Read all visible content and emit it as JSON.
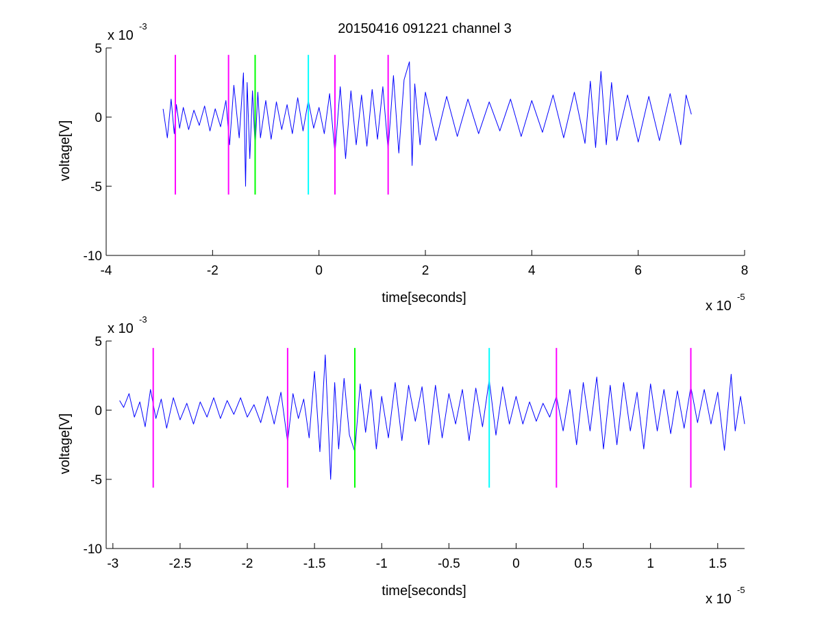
{
  "figure": {
    "title": "20150416 091221 channel 3",
    "background": "#ffffff",
    "signal_color": "#0000ff",
    "marker_colors": {
      "magenta": "#ff00ff",
      "green": "#00ff00",
      "cyan": "#00ffff"
    }
  },
  "chart_data": [
    {
      "type": "line",
      "title": "20150416 091221 channel 3",
      "xlabel": "time[seconds]",
      "ylabel": "voltage[V]",
      "x_multiplier": {
        "base": "x 10",
        "exponent": "-5"
      },
      "y_multiplier": {
        "base": "x 10",
        "exponent": "-3"
      },
      "xlim": [
        -4,
        8
      ],
      "ylim": [
        -10,
        5
      ],
      "x_ticks": [
        -4,
        -2,
        0,
        2,
        4,
        6,
        8
      ],
      "x_tick_labels": [
        "-4",
        "-2",
        "0",
        "2",
        "4",
        "6",
        "8"
      ],
      "y_ticks": [
        -10,
        -5,
        0,
        5
      ],
      "y_tick_labels": [
        "-10",
        "-5",
        "0",
        "5"
      ],
      "grid": false,
      "series": [
        {
          "color": "#0000ff",
          "x": [
            -2.93,
            -2.85,
            -2.78,
            -2.72,
            -2.68,
            -2.62,
            -2.55,
            -2.45,
            -2.35,
            -2.25,
            -2.15,
            -2.05,
            -1.95,
            -1.85,
            -1.75,
            -1.68,
            -1.6,
            -1.5,
            -1.42,
            -1.38,
            -1.35,
            -1.3,
            -1.25,
            -1.2,
            -1.15,
            -1.1,
            -1.0,
            -0.9,
            -0.8,
            -0.7,
            -0.6,
            -0.5,
            -0.4,
            -0.3,
            -0.2,
            -0.1,
            0.0,
            0.1,
            0.2,
            0.3,
            0.4,
            0.5,
            0.6,
            0.7,
            0.8,
            0.9,
            1.0,
            1.1,
            1.2,
            1.3,
            1.4,
            1.5,
            1.6,
            1.7,
            1.75,
            1.8,
            1.9,
            2.0,
            2.2,
            2.4,
            2.6,
            2.8,
            3.0,
            3.2,
            3.4,
            3.6,
            3.8,
            4.0,
            4.2,
            4.4,
            4.6,
            4.8,
            5.0,
            5.1,
            5.2,
            5.3,
            5.4,
            5.5,
            5.6,
            5.8,
            6.0,
            6.2,
            6.4,
            6.6,
            6.8,
            6.9,
            7.0
          ],
          "y": [
            0.6,
            -1.5,
            1.3,
            -1.2,
            0.9,
            -0.8,
            0.7,
            -0.9,
            0.5,
            -0.6,
            0.8,
            -1.0,
            0.6,
            -0.7,
            1.2,
            -2.0,
            2.3,
            -1.5,
            3.2,
            -5.0,
            2.5,
            -3.0,
            1.9,
            -2.2,
            1.8,
            -1.5,
            1.2,
            -1.6,
            1.1,
            -0.9,
            0.9,
            -1.2,
            1.4,
            -1.0,
            1.2,
            -0.8,
            0.7,
            -1.2,
            1.7,
            -2.6,
            2.2,
            -3.0,
            1.9,
            -2.0,
            1.6,
            -2.1,
            2.0,
            -1.6,
            2.2,
            -2.4,
            3.0,
            -2.6,
            2.7,
            4.0,
            -3.5,
            2.4,
            -2.0,
            1.8,
            -1.7,
            1.5,
            -1.4,
            1.3,
            -1.2,
            1.1,
            -1.0,
            1.3,
            -1.4,
            1.2,
            -1.1,
            1.6,
            -1.5,
            1.8,
            -1.9,
            2.6,
            -2.2,
            3.3,
            -2.0,
            2.5,
            -1.7,
            1.6,
            -1.8,
            1.5,
            -1.7,
            1.7,
            -2.0,
            1.6,
            0.2
          ]
        }
      ],
      "markers": [
        {
          "x": -2.7,
          "y_range": [
            -5.6,
            4.5
          ],
          "color": "#ff00ff"
        },
        {
          "x": -1.7,
          "y_range": [
            -5.6,
            4.5
          ],
          "color": "#ff00ff"
        },
        {
          "x": -1.2,
          "y_range": [
            -5.6,
            4.5
          ],
          "color": "#00ff00"
        },
        {
          "x": -0.2,
          "y_range": [
            -5.6,
            4.5
          ],
          "color": "#00ffff"
        },
        {
          "x": 0.3,
          "y_range": [
            -5.6,
            4.5
          ],
          "color": "#ff00ff"
        },
        {
          "x": 1.3,
          "y_range": [
            -5.6,
            4.5
          ],
          "color": "#ff00ff"
        }
      ]
    },
    {
      "type": "line",
      "title": "",
      "xlabel": "time[seconds]",
      "ylabel": "voltage[V]",
      "x_multiplier": {
        "base": "x 10",
        "exponent": "-5"
      },
      "y_multiplier": {
        "base": "x 10",
        "exponent": "-3"
      },
      "xlim": [
        -3.05,
        1.7
      ],
      "ylim": [
        -10,
        5
      ],
      "x_ticks": [
        -3,
        -2.5,
        -2,
        -1.5,
        -1,
        -0.5,
        0,
        0.5,
        1,
        1.5
      ],
      "x_tick_labels": [
        "-3",
        "-2.5",
        "-2",
        "-1.5",
        "-1",
        "-0.5",
        "0",
        "0.5",
        "1",
        "1.5"
      ],
      "y_ticks": [
        -10,
        -5,
        0,
        5
      ],
      "y_tick_labels": [
        "-10",
        "-5",
        "0",
        "5"
      ],
      "grid": false,
      "series": [
        {
          "color": "#0000ff",
          "x": [
            -2.95,
            -2.92,
            -2.88,
            -2.84,
            -2.8,
            -2.76,
            -2.72,
            -2.68,
            -2.64,
            -2.6,
            -2.55,
            -2.5,
            -2.45,
            -2.4,
            -2.35,
            -2.3,
            -2.25,
            -2.2,
            -2.15,
            -2.1,
            -2.05,
            -2.0,
            -1.95,
            -1.9,
            -1.85,
            -1.8,
            -1.75,
            -1.7,
            -1.66,
            -1.62,
            -1.58,
            -1.54,
            -1.5,
            -1.46,
            -1.42,
            -1.38,
            -1.35,
            -1.32,
            -1.28,
            -1.24,
            -1.2,
            -1.16,
            -1.12,
            -1.08,
            -1.04,
            -1.0,
            -0.95,
            -0.9,
            -0.85,
            -0.8,
            -0.75,
            -0.7,
            -0.65,
            -0.6,
            -0.55,
            -0.5,
            -0.45,
            -0.4,
            -0.35,
            -0.3,
            -0.25,
            -0.2,
            -0.15,
            -0.1,
            -0.05,
            0.0,
            0.05,
            0.1,
            0.15,
            0.2,
            0.25,
            0.3,
            0.35,
            0.4,
            0.45,
            0.5,
            0.55,
            0.6,
            0.65,
            0.7,
            0.75,
            0.8,
            0.85,
            0.9,
            0.95,
            1.0,
            1.05,
            1.1,
            1.15,
            1.2,
            1.25,
            1.3,
            1.35,
            1.4,
            1.45,
            1.5,
            1.55,
            1.6,
            1.63,
            1.67,
            1.7
          ],
          "y": [
            0.7,
            0.2,
            1.2,
            -0.5,
            0.6,
            -1.2,
            1.5,
            -0.6,
            0.8,
            -1.3,
            0.9,
            -0.7,
            0.5,
            -1.0,
            0.6,
            -0.5,
            0.9,
            -0.6,
            0.7,
            -0.3,
            0.9,
            -0.5,
            0.4,
            -0.9,
            1.0,
            -1.0,
            1.3,
            -2.3,
            1.2,
            -0.6,
            0.8,
            -2.0,
            2.8,
            -3.0,
            4.0,
            -5.0,
            2.0,
            -2.8,
            2.3,
            -1.8,
            -3.0,
            1.9,
            -1.6,
            1.5,
            -2.8,
            1.0,
            -2.0,
            2.0,
            -2.2,
            1.8,
            -0.8,
            1.7,
            -2.5,
            1.8,
            -2.0,
            1.2,
            -1.0,
            1.5,
            -2.2,
            1.6,
            -1.2,
            2.2,
            -1.8,
            1.7,
            -1.0,
            1.0,
            -1.0,
            0.6,
            -0.8,
            0.5,
            -0.5,
            1.0,
            -1.5,
            1.5,
            -2.5,
            2.0,
            -1.5,
            2.4,
            -2.8,
            1.8,
            -2.5,
            2.0,
            -1.5,
            1.3,
            -2.8,
            1.9,
            -1.5,
            1.5,
            -1.7,
            1.4,
            -1.3,
            1.7,
            -0.9,
            1.5,
            -1.0,
            1.3,
            -2.9,
            2.6,
            -1.5,
            1.0,
            -1.0
          ]
        }
      ],
      "markers": [
        {
          "x": -2.7,
          "y_range": [
            -5.6,
            4.5
          ],
          "color": "#ff00ff"
        },
        {
          "x": -1.7,
          "y_range": [
            -5.6,
            4.5
          ],
          "color": "#ff00ff"
        },
        {
          "x": -1.2,
          "y_range": [
            -5.6,
            4.5
          ],
          "color": "#00ff00"
        },
        {
          "x": -0.2,
          "y_range": [
            -5.6,
            4.5
          ],
          "color": "#00ffff"
        },
        {
          "x": 0.3,
          "y_range": [
            -5.6,
            4.5
          ],
          "color": "#ff00ff"
        },
        {
          "x": 1.3,
          "y_range": [
            -5.6,
            4.5
          ],
          "color": "#ff00ff"
        }
      ]
    }
  ]
}
